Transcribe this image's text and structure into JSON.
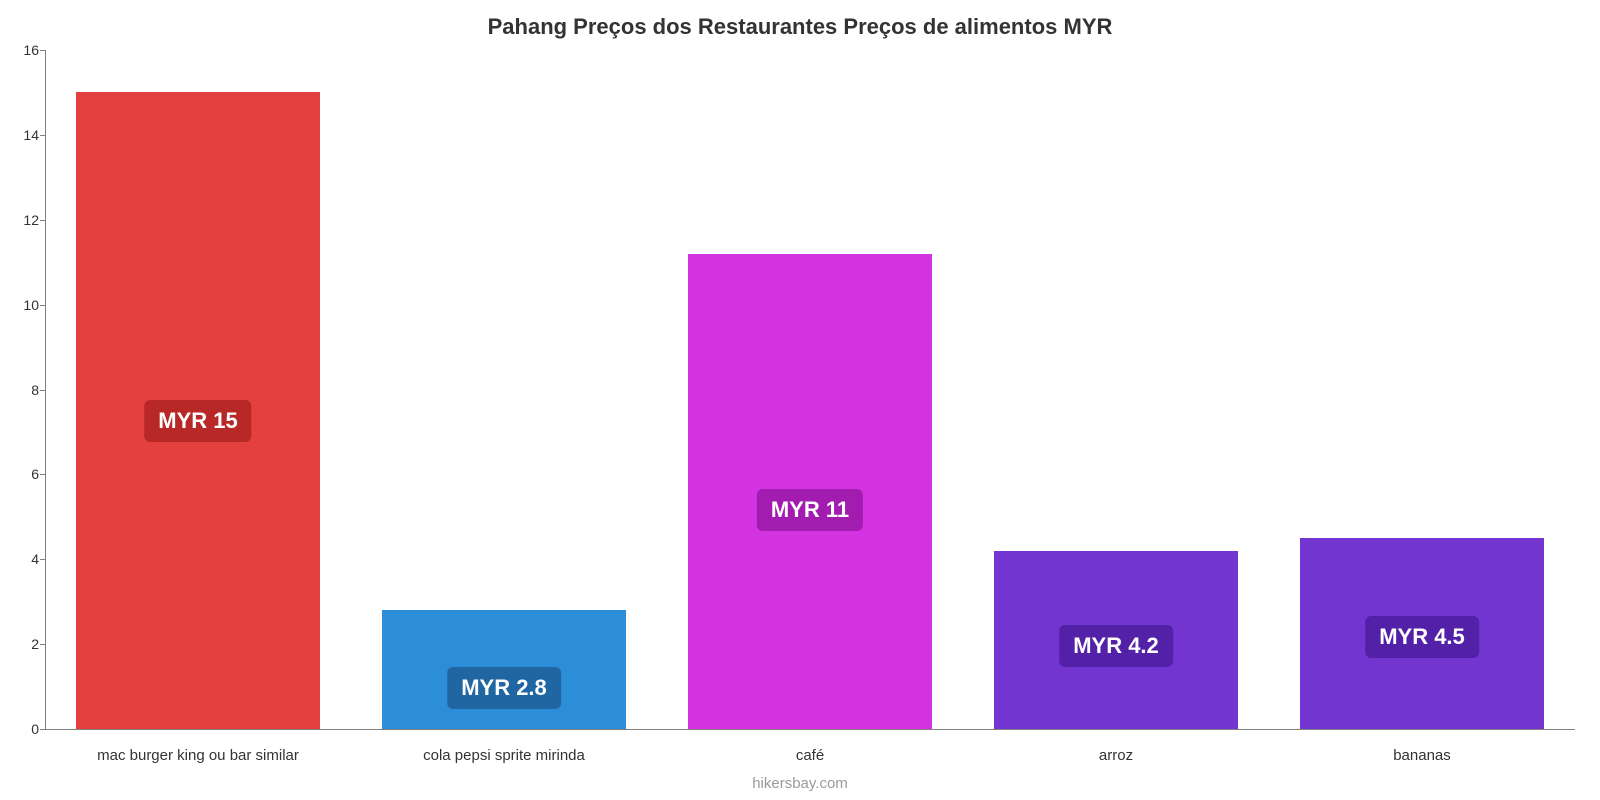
{
  "chart": {
    "type": "bar",
    "title": "Pahang Preços dos Restaurantes Preços de alimentos MYR",
    "title_fontsize": 22,
    "title_color": "#333333",
    "background_color": "#ffffff",
    "axis_color": "#808080",
    "ylim": [
      0,
      16
    ],
    "ytick_step": 2,
    "yticks": [
      0,
      2,
      4,
      6,
      8,
      10,
      12,
      14,
      16
    ],
    "ytick_fontsize": 14,
    "xtick_fontsize": 15,
    "label_fontsize": 22,
    "bar_width_pct": 80,
    "categories": [
      "mac burger king ou bar similar",
      "cola pepsi sprite mirinda",
      "café",
      "arroz",
      "bananas"
    ],
    "values": [
      15,
      2.8,
      11.2,
      4.2,
      4.5
    ],
    "value_labels": [
      "MYR 15",
      "MYR 2.8",
      "MYR 11",
      "MYR 4.2",
      "MYR 4.5"
    ],
    "bar_colors": [
      "#e4403f",
      "#2d8ed8",
      "#d333e0",
      "#7235d0",
      "#7235d0"
    ],
    "label_bg_colors": [
      "#b72827",
      "#1f66a3",
      "#a21cb0",
      "#5321a7",
      "#5321a7"
    ],
    "label_rel_from_top": [
      0.45,
      0.3,
      0.45,
      0.3,
      0.3
    ],
    "source": "hikersbay.com",
    "source_color": "#9a9a9a"
  }
}
